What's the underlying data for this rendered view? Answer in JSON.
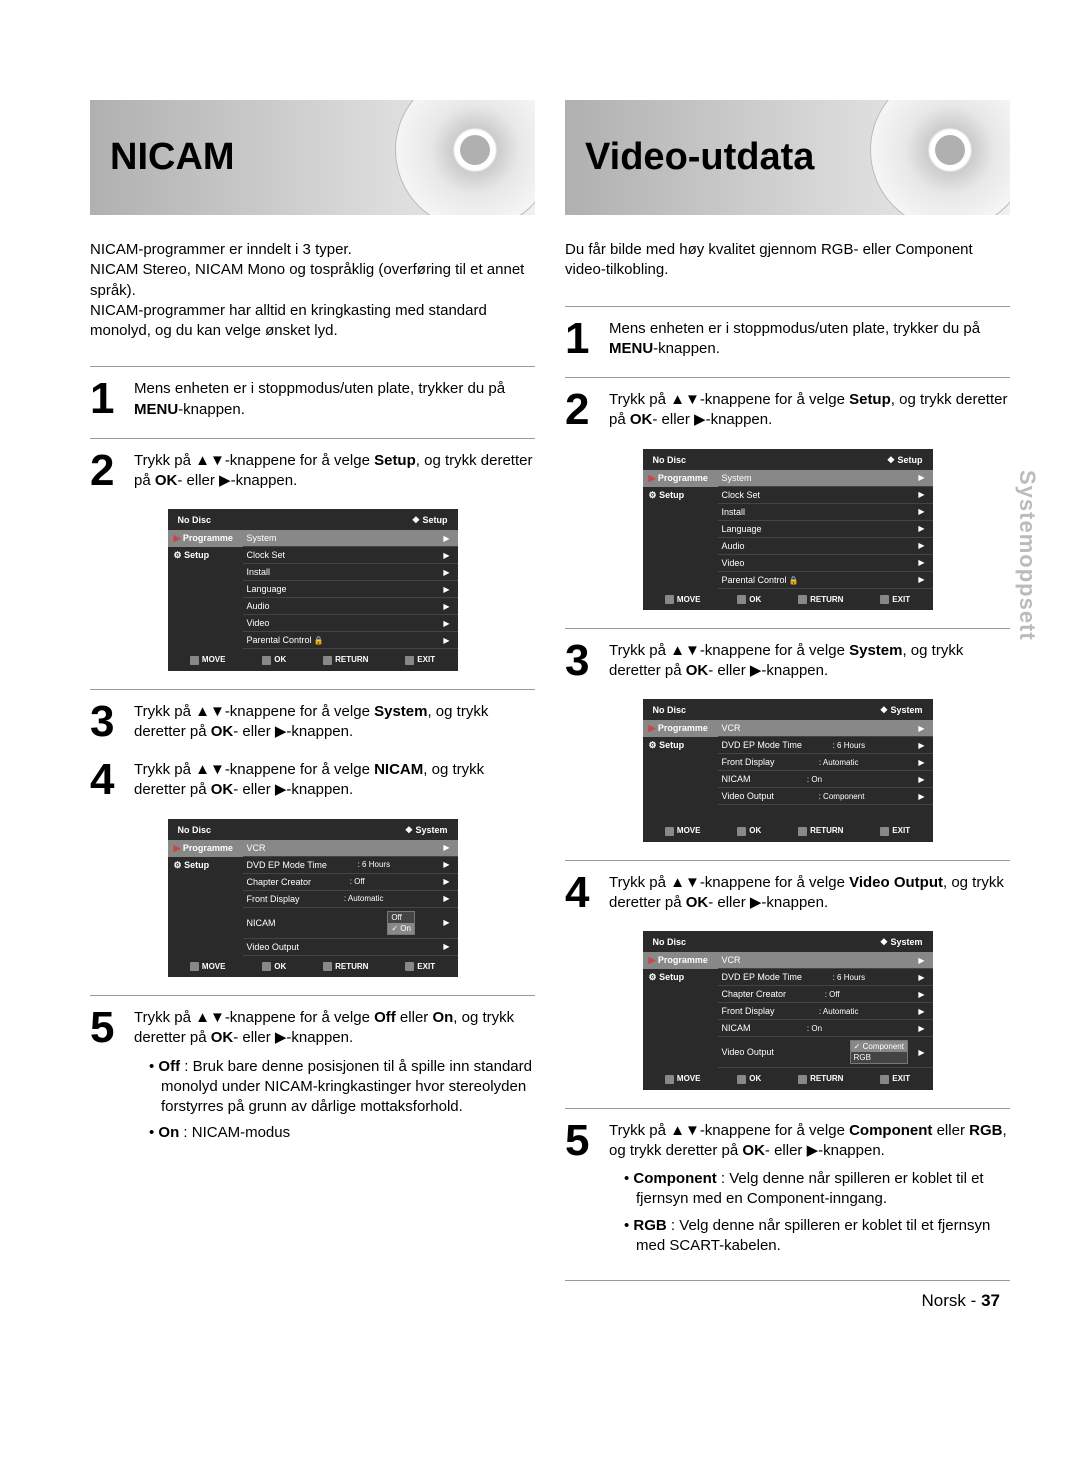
{
  "sideTab": "Systemoppsett",
  "footer": {
    "lang": "Norsk",
    "sep": "-",
    "page": "37"
  },
  "osdCommon": {
    "noDisc": "No Disc",
    "programme": "Programme",
    "setup": "Setup",
    "move": "MOVE",
    "ok": "OK",
    "return": "RETURN",
    "exit": "EXIT"
  },
  "left": {
    "title": "NICAM",
    "intro": "NICAM-programmer er inndelt i 3 typer.\nNICAM Stereo, NICAM Mono og tospråklig (overføring til et annet språk).\nNICAM-programmer har alltid en kringkasting med standard monolyd, og du kan velge ønsket lyd.",
    "steps": {
      "s1": "Mens enheten er i stoppmodus/uten plate, trykker du på <b>MENU</b>-knappen.",
      "s2": "Trykk på ▲▼-knappene for å velge <b>Setup</b>, og trykk deretter på <b>OK</b>- eller ▶-knappen.",
      "s3": "Trykk på ▲▼-knappene for å velge <b>System</b>, og trykk deretter på <b>OK</b>- eller ▶-knappen.",
      "s4": "Trykk på ▲▼-knappene for å velge <b>NICAM</b>, og trykk deretter på <b>OK</b>- eller ▶-knappen.",
      "s5": "Trykk på ▲▼-knappene for å velge <b>Off</b> eller <b>On</b>, og trykk deretter på <b>OK</b>- eller ▶-knappen.",
      "s5_off": "<b>Off</b> : Bruk bare denne posisjonen til å spille inn standard monolyd under NICAM-kringkastinger hvor stereolyden forstyrres på grunn av dårlige mottaksforhold.",
      "s5_on": "<b>On</b> : NICAM-modus"
    },
    "osdSetup": {
      "crumb": "Setup",
      "items": [
        {
          "label": "System",
          "hl": true
        },
        {
          "label": "Clock Set"
        },
        {
          "label": "Install"
        },
        {
          "label": "Language"
        },
        {
          "label": "Audio"
        },
        {
          "label": "Video"
        },
        {
          "label": "Parental Control",
          "lock": true
        }
      ]
    },
    "osdSystem": {
      "crumb": "System",
      "items": [
        {
          "label": "VCR",
          "val": "",
          "hl": true
        },
        {
          "label": "DVD EP Mode Time",
          "val": ": 6 Hours"
        },
        {
          "label": "Chapter Creator",
          "val": ": Off"
        },
        {
          "label": "Front Display",
          "val": ": Automatic"
        },
        {
          "label": "NICAM",
          "val": "",
          "drop": [
            "Off",
            "On"
          ],
          "dropHl": 1
        },
        {
          "label": "Video Output",
          "val": ""
        }
      ]
    }
  },
  "right": {
    "title": "Video-utdata",
    "intro": "Du får bilde med høy kvalitet gjennom RGB- eller Component video-tilkobling.",
    "steps": {
      "s1": "Mens enheten er i stoppmodus/uten plate, trykker du på <b>MENU</b>-knappen.",
      "s2": "Trykk på ▲▼-knappene for å velge <b>Setup</b>, og trykk deretter på <b>OK</b>- eller ▶-knappen.",
      "s3": "Trykk på ▲▼-knappene for å velge <b>System</b>, og trykk deretter på <b>OK</b>- eller ▶-knappen.",
      "s4": "Trykk på ▲▼-knappene for å velge <b>Video Output</b>, og trykk deretter på <b>OK</b>- eller ▶-knappen.",
      "s5": "Trykk på ▲▼-knappene for å velge <b>Component</b> eller <b>RGB</b>, og trykk deretter på <b>OK</b>- eller ▶-knappen.",
      "s5_comp": "<b>Component</b> : Velg denne når spilleren er koblet til et fjernsyn med en Component-inngang.",
      "s5_rgb": "<b>RGB</b> : Velg denne når spilleren er koblet til et fjernsyn med SCART-kabelen."
    },
    "osdSetup": {
      "crumb": "Setup",
      "items": [
        {
          "label": "System",
          "hl": true
        },
        {
          "label": "Clock Set"
        },
        {
          "label": "Install"
        },
        {
          "label": "Language"
        },
        {
          "label": "Audio"
        },
        {
          "label": "Video"
        },
        {
          "label": "Parental Control",
          "lock": true
        }
      ]
    },
    "osdSystemA": {
      "crumb": "System",
      "items": [
        {
          "label": "VCR",
          "val": "",
          "hl": true
        },
        {
          "label": "DVD EP Mode Time",
          "val": ": 6 Hours"
        },
        {
          "label": "Front Display",
          "val": ": Automatic"
        },
        {
          "label": "NICAM",
          "val": ": On"
        },
        {
          "label": "Video Output",
          "val": ": Component"
        }
      ]
    },
    "osdSystemB": {
      "crumb": "System",
      "items": [
        {
          "label": "VCR",
          "val": "",
          "hl": true
        },
        {
          "label": "DVD EP Mode Time",
          "val": ": 6 Hours"
        },
        {
          "label": "Chapter Creator",
          "val": ": Off"
        },
        {
          "label": "Front Display",
          "val": ": Automatic"
        },
        {
          "label": "NICAM",
          "val": ": On"
        },
        {
          "label": "Video Output",
          "val": "",
          "drop": [
            "Component",
            "RGB"
          ],
          "dropHl": 0
        }
      ]
    }
  }
}
